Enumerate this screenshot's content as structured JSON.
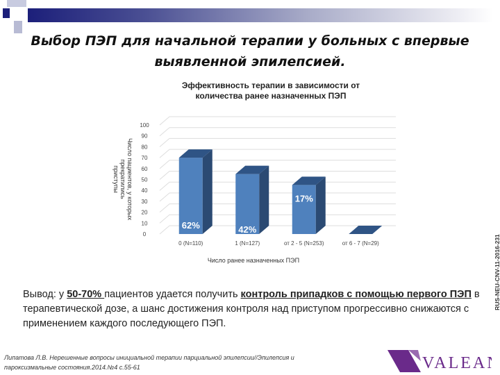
{
  "slide": {
    "title_line1": "Выбор ПЭП для начальной терапии у больных с впервые",
    "title_line2": "выявленной эпилепсией.",
    "conclusion": {
      "p1": "Вывод: у ",
      "b1": "50-70% ",
      "p2": "пациентов удается получить ",
      "b2": "контроль припадков с помощью первого ПЭП",
      "p3": " в терапевтической дозе, а шанс достижения контроля над приступом прогрессивно снижаются с применением каждого последующего ПЭП."
    },
    "reference_line1": "Липатова Л.В. Нерешенные вопросы инициальной терапии парциальной эпилепсии//Эпилепсия и",
    "reference_line2": "пароксизмальные состояния.2014.№4 с.55-61",
    "logo_text": "VALEANT",
    "doc_code": "RUS-NEU-CNV-11-2016-231",
    "colors": {
      "bar_front": "#4f81bd",
      "bar_side": "#2b4a73",
      "bar_top": "#2f5485",
      "logo": "#6a2a8a",
      "header": "#1c1f7a"
    }
  },
  "chart_data": {
    "type": "bar",
    "style": "3d",
    "title_line1": "Эффективность терапии в зависимости от",
    "title_line2": "количества ранее назначенных ПЭП",
    "ylabel_line1": "Число пациентов, у которых прекратились",
    "ylabel_line2": "приступы",
    "xlabel": "Число ранее назначенных ПЭП",
    "categories": [
      "0 (N=110)",
      "1 (N=127)",
      "от 2 - 5 (N=253)",
      "от 6 - 7 (N=29)"
    ],
    "values": [
      70,
      55,
      45,
      0
    ],
    "data_labels": [
      "62%",
      "42%",
      "17%",
      ""
    ],
    "ylim": [
      0,
      100
    ],
    "yticks": [
      "0",
      "10",
      "20",
      "30",
      "40",
      "50",
      "60",
      "70",
      "80",
      "90",
      "100"
    ],
    "grid": true,
    "legend": "none"
  }
}
